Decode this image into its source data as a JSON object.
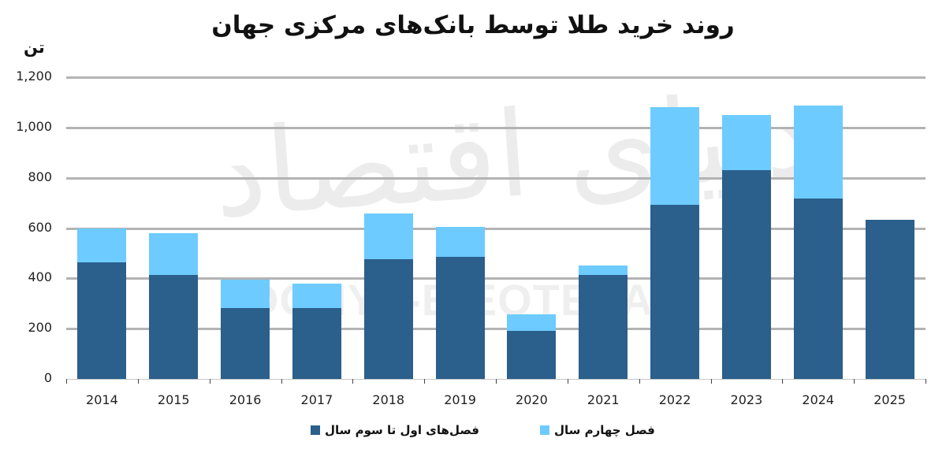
{
  "title": "روند خرید طلا توسط بانک‌های مرکزی جهان",
  "unit_label": "تن",
  "watermark": {
    "fa": "دنیای اقتصاد",
    "en": "DONYA-E-EQTESAD"
  },
  "colors": {
    "q1_q3": "#2B5F8C",
    "q4": "#6DCBFF",
    "grid": "#B3B3B3"
  },
  "legend": {
    "q1_q3_label": "فصل‌های اول تا سوم سال",
    "q4_label": "فصل چهارم سال"
  },
  "y_ticks": [
    "0",
    "200",
    "400",
    "600",
    "800",
    "1,000",
    "1,200"
  ],
  "chart_data": {
    "type": "bar",
    "stacked": true,
    "title": "روند خرید طلا توسط بانک‌های مرکزی جهان",
    "xlabel": "",
    "ylabel": "تن",
    "ylim": [
      0,
      1200
    ],
    "y_ticks": [
      0,
      200,
      400,
      600,
      800,
      1000,
      1200
    ],
    "grid": true,
    "legend_position": "bottom",
    "categories": [
      "2014",
      "2015",
      "2016",
      "2017",
      "2018",
      "2019",
      "2020",
      "2021",
      "2022",
      "2023",
      "2024",
      "2025"
    ],
    "series": [
      {
        "name": "فصل‌های اول تا سوم سال",
        "color": "#2B5F8C",
        "values": [
          464,
          414,
          282,
          282,
          476,
          486,
          191,
          414,
          693,
          831,
          718,
          634
        ]
      },
      {
        "name": "فصل چهارم سال",
        "color": "#6DCBFF",
        "values": [
          136,
          166,
          114,
          97,
          182,
          119,
          66,
          37,
          389,
          219,
          370,
          0
        ]
      }
    ],
    "totals": [
      600,
      580,
      396,
      379,
      658,
      605,
      257,
      451,
      1082,
      1050,
      1088,
      634
    ]
  }
}
